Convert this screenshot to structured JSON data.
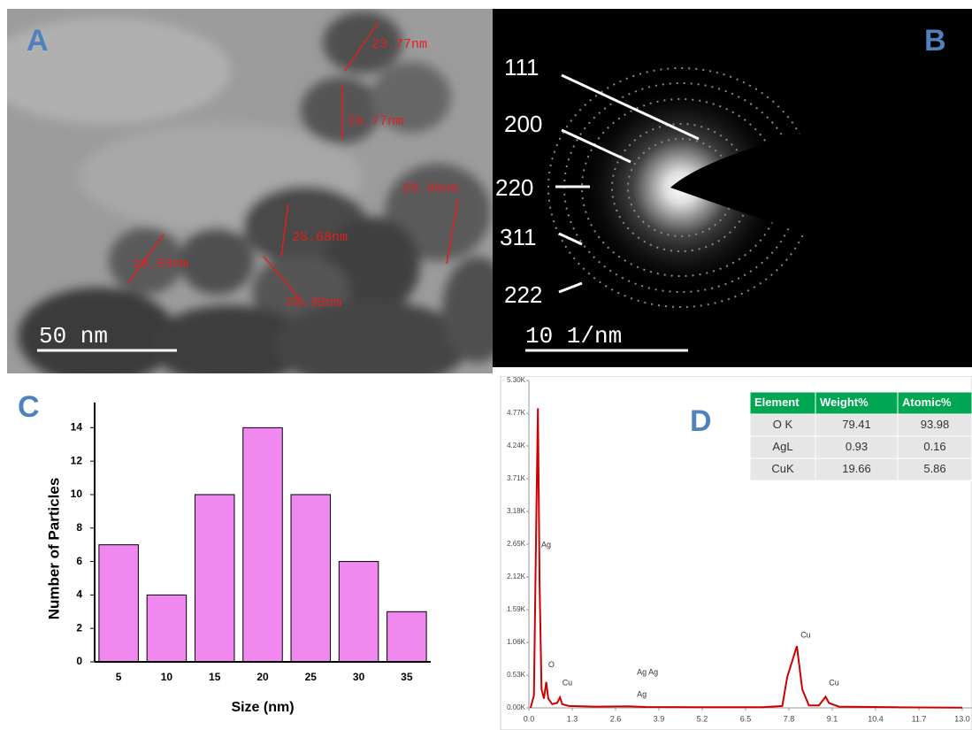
{
  "panels": {
    "A": {
      "label": "A",
      "annotations": [
        "23.77nm",
        "26.77nm",
        "29.99nm",
        "25.68nm",
        "26.93nm",
        "28.30nm"
      ],
      "scale_bar": "50 nm"
    },
    "B": {
      "label": "B",
      "rings": [
        "111",
        "200",
        "220",
        "311",
        "222"
      ],
      "scale_bar": "10 1/nm"
    }
  },
  "chart_data": [
    {
      "type": "bar",
      "label": "C",
      "x_label": "Size (nm)",
      "y_label": "Number of Particles",
      "categories": [
        "5",
        "10",
        "15",
        "20",
        "25",
        "30",
        "35"
      ],
      "values": [
        7,
        4,
        10,
        14,
        10,
        6,
        3
      ],
      "color": "#f088f0",
      "ylim": [
        0,
        15.5
      ],
      "yticks": [
        0,
        2,
        4,
        6,
        8,
        10,
        12,
        14
      ]
    },
    {
      "type": "line",
      "label": "D",
      "color": "#cc0000",
      "x": [
        0.05,
        0.15,
        0.22,
        0.27,
        0.32,
        0.38,
        0.45,
        0.52,
        0.58,
        0.7,
        0.85,
        0.93,
        1.0,
        1.2,
        2.0,
        2.98,
        3.5,
        5,
        7.0,
        7.6,
        7.75,
        8.04,
        8.2,
        8.4,
        8.7,
        8.9,
        9.0,
        9.3,
        11,
        13
      ],
      "values": [
        0,
        200,
        3000,
        4850,
        2000,
        300,
        150,
        420,
        150,
        60,
        80,
        170,
        60,
        30,
        20,
        25,
        15,
        10,
        10,
        30,
        500,
        1000,
        300,
        40,
        40,
        180,
        80,
        20,
        10,
        5
      ],
      "xlim": [
        0,
        13.2
      ],
      "ylim": [
        0,
        5300
      ],
      "xticks": [
        {
          "value": 0,
          "label": "0.0"
        },
        1.3,
        2.6,
        3.9,
        5.2,
        6.5,
        7.8,
        9.1,
        10.4,
        11.7,
        {
          "value": 13,
          "label": "13.0"
        }
      ],
      "yticks": [
        {
          "value": 0,
          "label": "0.00K"
        },
        {
          "value": 530,
          "label": "0.53K"
        },
        {
          "value": 1060,
          "label": "1.06K"
        },
        {
          "value": 1590,
          "label": "1.59K"
        },
        {
          "value": 2120,
          "label": "2.12K"
        },
        {
          "value": 2650,
          "label": "2.65K"
        },
        {
          "value": 3180,
          "label": "3.18K"
        },
        {
          "value": 3710,
          "label": "3.71K"
        },
        {
          "value": 4240,
          "label": "4.24K"
        },
        {
          "value": 4770,
          "label": "4.77K"
        },
        {
          "value": 5300,
          "label": "5.30K"
        }
      ],
      "annotations": [
        {
          "text": "Ag",
          "x": 0.37,
          "y": 2635
        },
        {
          "text": "O",
          "x": 0.58,
          "y": 690
        },
        {
          "text": "Cu",
          "x": 1.0,
          "y": 400
        },
        {
          "text": "Ag Ag",
          "x": 3.24,
          "y": 570
        },
        {
          "text": "Ag",
          "x": 3.24,
          "y": 215
        },
        {
          "text": "Cu",
          "x": 8.15,
          "y": 1175
        },
        {
          "text": "Cu",
          "x": 9.0,
          "y": 400
        }
      ]
    }
  ],
  "table": {
    "header": [
      "Element",
      "Weight%",
      "Atomic%"
    ],
    "rows": [
      [
        "O K",
        "79.41",
        "93.98"
      ],
      [
        "AgL",
        "0.93",
        "0.16"
      ],
      [
        "CuK",
        "19.66",
        "5.86"
      ]
    ]
  }
}
